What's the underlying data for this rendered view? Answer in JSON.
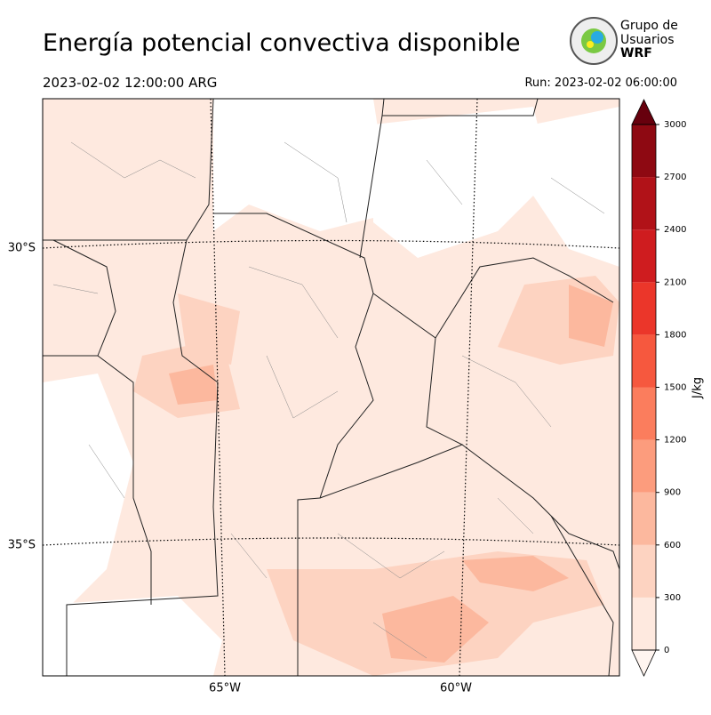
{
  "header": {
    "title": "Energía potencial convectiva disponible",
    "valid_time": "2023-02-02 12:00:00 ARG",
    "run": "Run: 2023-02-02 06:00:00"
  },
  "logo": {
    "line1": "Grupo de",
    "line2": "Usuarios",
    "line3": "WRF"
  },
  "map": {
    "lat_labels": [
      "30°S",
      "35°S"
    ],
    "lon_labels": [
      "65°W",
      "60°W"
    ]
  },
  "colorbar": {
    "label": "J/kg",
    "ticks": [
      0,
      300,
      600,
      900,
      1200,
      1500,
      1800,
      2100,
      2400,
      2700,
      3000
    ],
    "colors": [
      "#fee9df",
      "#fdd3c1",
      "#fcb89e",
      "#fc9c7d",
      "#fb7d5d",
      "#f6583e",
      "#eb362a",
      "#cf1c1f",
      "#b11218",
      "#8e0912"
    ],
    "over_color": "#67000d",
    "under_color": "#fff5f0"
  }
}
